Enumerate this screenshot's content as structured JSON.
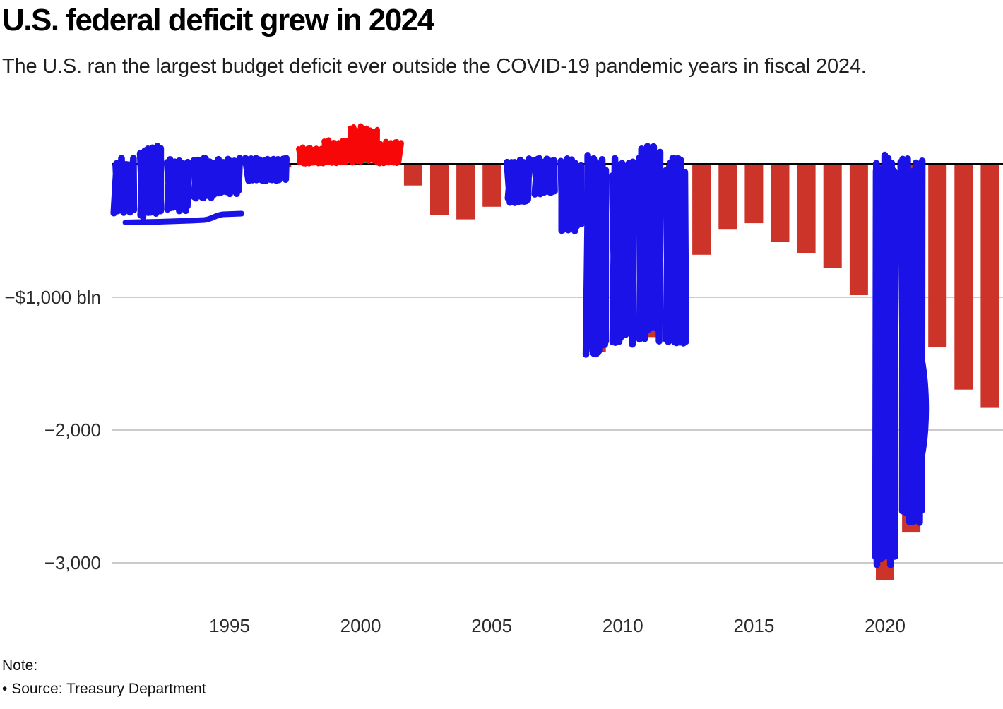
{
  "header": {
    "title": "U.S. federal deficit grew in 2024",
    "subtitle": "The U.S. ran the largest budget deficit ever outside the COVID-19 pandemic years in fiscal 2024."
  },
  "chart_data": {
    "type": "bar",
    "title": "U.S. federal deficit grew in 2024",
    "unit": "$ bln",
    "x": [
      1991,
      1992,
      1993,
      1994,
      1995,
      1996,
      1997,
      1998,
      1999,
      2000,
      2001,
      2002,
      2003,
      2004,
      2005,
      2006,
      2007,
      2008,
      2009,
      2010,
      2011,
      2012,
      2013,
      2014,
      2015,
      2016,
      2017,
      2018,
      2019,
      2020,
      2021,
      2022,
      2023,
      2024
    ],
    "values": [
      -269,
      -290,
      -255,
      -203,
      -164,
      -107,
      -22,
      69,
      126,
      236,
      128,
      -158,
      -378,
      -413,
      -318,
      -248,
      -161,
      -459,
      -1413,
      -1294,
      -1300,
      -1087,
      -680,
      -485,
      -442,
      -585,
      -665,
      -779,
      -984,
      -3132,
      -2772,
      -1375,
      -1695,
      -1833
    ],
    "xlabel": "",
    "ylabel": "",
    "ylim": [
      -3300,
      300
    ],
    "grid": "horizontal",
    "legend": "none",
    "y_ticks": [
      {
        "value": -1000,
        "label": "−$1,000 bln"
      },
      {
        "value": -2000,
        "label": "−2,000"
      },
      {
        "value": -3000,
        "label": "−3,000"
      }
    ],
    "x_ticks": [
      {
        "value": 1995,
        "label": "1995"
      },
      {
        "value": 2000,
        "label": "2000"
      },
      {
        "value": 2005,
        "label": "2005"
      },
      {
        "value": 2010,
        "label": "2010"
      },
      {
        "value": 2015,
        "label": "2015"
      },
      {
        "value": 2020,
        "label": "2020"
      }
    ],
    "colors": {
      "deficit_bar": "#cd3429",
      "surplus_bar": "#418c3c",
      "zero_line": "#000000",
      "gridline": "#cbcbcb",
      "axis_text": "#2b2b2b"
    },
    "annotations": {
      "marker_blue": "#1a12e6",
      "marker_red": "#f70707",
      "blue_scribbled_years": [
        1991,
        1992,
        1993,
        1994,
        1995,
        1996,
        2006,
        2007,
        2008,
        2009,
        2010,
        2011,
        2012,
        2020,
        2021
      ],
      "red_scribbled_years": [
        1998,
        1999,
        2000,
        2001
      ],
      "blue_underline_under_years": [
        1991,
        1995
      ]
    }
  },
  "footer": {
    "note_label": "Note:",
    "source_line": "• Source: Treasury Department"
  }
}
